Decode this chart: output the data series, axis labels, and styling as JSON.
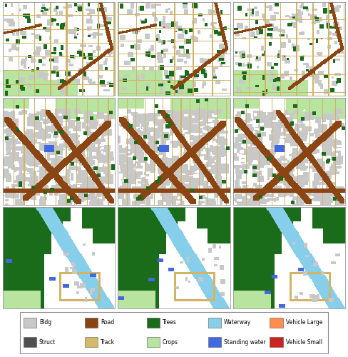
{
  "figsize": [
    4.88,
    5.0
  ],
  "dpi": 100,
  "legend_items_row1": [
    {
      "label": "Bldg",
      "color": "#c8c8c8"
    },
    {
      "label": "Road",
      "color": "#8B4513"
    },
    {
      "label": "Trees",
      "color": "#1a6b1a"
    },
    {
      "label": "Waterway",
      "color": "#87ceeb"
    },
    {
      "label": "Vehicle Large",
      "color": "#ff8c50"
    }
  ],
  "legend_items_row2": [
    {
      "label": "Struct",
      "color": "#505050"
    },
    {
      "label": "Track",
      "color": "#d4b96a"
    },
    {
      "label": "Crops",
      "color": "#b8e4a0"
    },
    {
      "label": "Standing water",
      "color": "#4169e1"
    },
    {
      "label": "Vehicle Small",
      "color": "#cc2222"
    }
  ],
  "colors": {
    "background": [
      255,
      255,
      255
    ],
    "building": [
      200,
      200,
      200
    ],
    "struct": [
      80,
      80,
      80
    ],
    "road": [
      139,
      69,
      19
    ],
    "track": [
      210,
      180,
      100
    ],
    "trees": [
      26,
      107,
      26
    ],
    "crops": [
      184,
      228,
      160
    ],
    "waterway": [
      135,
      206,
      235
    ],
    "standing_water": [
      65,
      105,
      225
    ],
    "vehicle_large": [
      255,
      140,
      80
    ],
    "vehicle_small": [
      204,
      34,
      34
    ],
    "red_dot": [
      255,
      50,
      50
    ]
  }
}
